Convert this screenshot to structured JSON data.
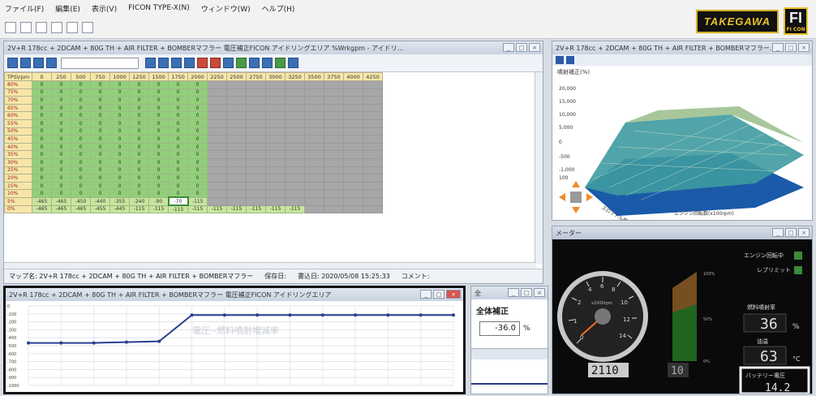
{
  "menu": [
    "ファイル(F)",
    "編集(E)",
    "表示(V)",
    "FICON TYPE-X(N)",
    "ウィンドウ(W)",
    "ヘルプ(H)"
  ],
  "brand": {
    "logo_text": "TAKEGAWA",
    "logo_sub": "FI CON"
  },
  "map_window": {
    "title": "2V+R 178cc + 2DCAM + 80G TH + AIR FILTER + BOMBERマフラー   電圧補正FICON  アイドリングエリア  %Wrkgpm - アイドリ...",
    "columns": [
      "TPS\\rpm",
      "0",
      "250",
      "500",
      "750",
      "1000",
      "1250",
      "1500",
      "1750",
      "2000",
      "2250",
      "2500",
      "2750",
      "3000",
      "3250",
      "3500",
      "3750",
      "4000",
      "4250"
    ],
    "rows": [
      {
        "label": "80%",
        "values": [
          "0",
          "0",
          "0",
          "0",
          "0",
          "0",
          "0",
          "0",
          "0"
        ]
      },
      {
        "label": "75%",
        "values": [
          "0",
          "0",
          "0",
          "0",
          "0",
          "0",
          "0",
          "0",
          "0"
        ]
      },
      {
        "label": "70%",
        "values": [
          "0",
          "0",
          "0",
          "0",
          "0",
          "0",
          "0",
          "0",
          "0"
        ]
      },
      {
        "label": "65%",
        "values": [
          "0",
          "0",
          "0",
          "0",
          "0",
          "0",
          "0",
          "0",
          "0"
        ]
      },
      {
        "label": "60%",
        "values": [
          "0",
          "0",
          "0",
          "0",
          "0",
          "0",
          "0",
          "0",
          "0"
        ]
      },
      {
        "label": "55%",
        "values": [
          "0",
          "0",
          "0",
          "0",
          "0",
          "0",
          "0",
          "0",
          "0"
        ]
      },
      {
        "label": "50%",
        "values": [
          "0",
          "0",
          "0",
          "0",
          "0",
          "0",
          "0",
          "0",
          "0"
        ]
      },
      {
        "label": "45%",
        "values": [
          "0",
          "0",
          "0",
          "0",
          "0",
          "0",
          "0",
          "0",
          "0"
        ]
      },
      {
        "label": "40%",
        "values": [
          "0",
          "0",
          "0",
          "0",
          "0",
          "0",
          "0",
          "0",
          "0"
        ]
      },
      {
        "label": "35%",
        "values": [
          "0",
          "0",
          "0",
          "0",
          "0",
          "0",
          "0",
          "0",
          "0"
        ]
      },
      {
        "label": "30%",
        "values": [
          "0",
          "0",
          "0",
          "0",
          "0",
          "0",
          "0",
          "0",
          "0"
        ]
      },
      {
        "label": "25%",
        "values": [
          "0",
          "0",
          "0",
          "0",
          "0",
          "0",
          "0",
          "0",
          "0"
        ]
      },
      {
        "label": "20%",
        "values": [
          "0",
          "0",
          "0",
          "0",
          "0",
          "0",
          "0",
          "0",
          "0"
        ]
      },
      {
        "label": "15%",
        "values": [
          "0",
          "0",
          "0",
          "0",
          "0",
          "0",
          "0",
          "0",
          "0"
        ]
      },
      {
        "label": "10%",
        "values": [
          "0",
          "0",
          "0",
          "0",
          "0",
          "0",
          "0",
          "0",
          "0"
        ]
      },
      {
        "label": "5%",
        "values": [
          "-465",
          "-465",
          "-450",
          "-440",
          "-355",
          "-240",
          "-90",
          "-70",
          "-115"
        ]
      },
      {
        "label": "0%",
        "values": [
          "-465",
          "-465",
          "-465",
          "-455",
          "-445",
          "-115",
          "-115",
          "-115",
          "-115",
          "-115",
          "-115",
          "-115",
          "-115",
          "-115"
        ]
      }
    ],
    "status": {
      "map": "マップ名: 2V+R 178cc + 2DCAM + 80G TH + AIR FILTER + BOMBERマフラー",
      "saved": "保存日:",
      "written": "書込日: 2020/05/08 15:25:33",
      "comment": "コメント:"
    }
  },
  "window_3d": {
    "title": "2V+R 178cc + 2DCAM + 80G TH + AIR FILTER + BOMBERマフラー...",
    "zlabel": "噴射補正(%)",
    "xlabel": "エンジン回転数(x100rpm)",
    "ylabel": "スロットル開度"
  },
  "meter_window": {
    "title": "メーター",
    "rpm_label": "x1000rpm",
    "rpm_value": "2110",
    "gear_value": "10",
    "engine_running": "エンジン回転中",
    "rev_limit": "レブリミット",
    "injection_label": "燃料噴射率",
    "injection_value": "36",
    "injection_unit": "%",
    "temp_label": "油温",
    "temp_value": "63",
    "temp_unit": "°C",
    "battery_label": "バッテリー電圧",
    "battery_value": "14.2"
  },
  "chart_window": {
    "title": "2V+R 178cc + 2DCAM + 80G TH + AIR FILTER + BOMBERマフラー   電圧補正FICON  アイドリングエリア",
    "watermark": "電圧--燃料噴射増減率"
  },
  "corr_window": {
    "title": "全体補正",
    "label": "全体補正",
    "value": "-36.0",
    "unit": "%"
  },
  "chart_data": {
    "type": "line",
    "x": [
      0,
      1,
      2,
      3,
      4,
      5,
      6,
      7,
      8,
      9,
      10,
      11,
      12,
      13
    ],
    "series": [
      {
        "values": [
          -465,
          -465,
          -465,
          -455,
          -445,
          -115,
          -115,
          -115,
          -115,
          -115,
          -115,
          -115,
          -115,
          -115
        ]
      }
    ],
    "ylim": [
      -1000,
      0
    ],
    "grid": true
  }
}
